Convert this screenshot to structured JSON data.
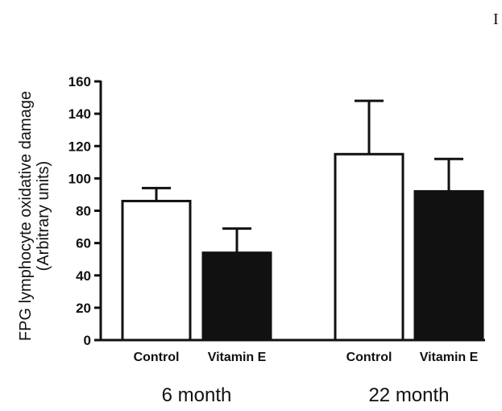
{
  "chart_data": {
    "type": "bar",
    "title": "",
    "ylabel_lines": [
      "FPG lymphocyte  oxidative damage",
      "(Arbitrary units)"
    ],
    "ylim": [
      0,
      160
    ],
    "yticks": [
      "0",
      "20",
      "40",
      "60",
      "80",
      "100",
      "120",
      "140",
      "160"
    ],
    "groups": [
      "6 month",
      "22 month"
    ],
    "categories": [
      "Control",
      "Vitamin E"
    ],
    "series": [
      {
        "name": "Control",
        "fill": "#ffffff",
        "values": [
          86,
          115
        ],
        "error": [
          8,
          33
        ]
      },
      {
        "name": "Vitamin E",
        "fill": "#111111",
        "values": [
          54,
          92
        ],
        "error": [
          15,
          20
        ]
      }
    ],
    "corner_mark": "I"
  }
}
